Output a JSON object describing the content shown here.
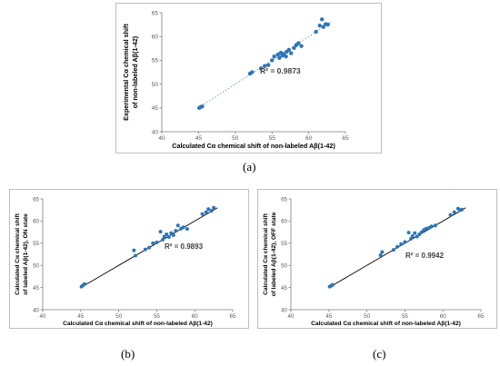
{
  "captions": {
    "a": "(a)",
    "b": "(b)",
    "c": "(c)"
  },
  "colors": {
    "points": "#2e75b6",
    "trend_a": "#5b9bd5",
    "trend_bc": "#000000",
    "axis": "#7f7f7f",
    "tick_text": "#595959"
  },
  "chart_data": [
    {
      "id": "a",
      "type": "scatter",
      "xlabel": "Calculated Cα chemical shift of non-labeled Aβ(1-42)",
      "ylabel_lines": [
        "Experimental Cα chemical shift",
        "of non-labeled Aβ(1-42)"
      ],
      "annotation": "R² = 0.9873",
      "xlim": [
        40,
        65
      ],
      "ylim": [
        40,
        65
      ],
      "xticks": [
        40,
        45,
        50,
        55,
        60,
        65
      ],
      "yticks": [
        40,
        45,
        50,
        55,
        60,
        65
      ],
      "trendline": {
        "style": "dotted",
        "from": [
          45,
          45.0
        ],
        "to": [
          63,
          63.0
        ]
      },
      "x": [
        45.1,
        45.3,
        45.5,
        52.0,
        52.3,
        53.5,
        54.0,
        54.5,
        55.0,
        55.3,
        55.8,
        56.0,
        56.2,
        56.4,
        56.6,
        56.9,
        57.0,
        57.3,
        57.6,
        58.0,
        58.3,
        58.6,
        59.0,
        61.0,
        61.5,
        61.8,
        62.0,
        62.3,
        62.6
      ],
      "y": [
        45.0,
        45.2,
        45.3,
        52.2,
        52.5,
        53.3,
        53.8,
        54.0,
        55.0,
        55.8,
        56.2,
        55.5,
        56.6,
        56.0,
        56.3,
        55.8,
        56.8,
        57.2,
        56.5,
        57.6,
        58.2,
        58.6,
        58.0,
        61.0,
        62.3,
        63.6,
        62.0,
        62.6,
        62.5
      ]
    },
    {
      "id": "b",
      "type": "scatter",
      "xlabel": "Calculated Cα chemical shift  of non-labeled Aβ(1-42)",
      "ylabel_lines": [
        "Calculated Cα chemical shift",
        "of labeled Aβ(1-42), ON state"
      ],
      "annotation": "R² = 0.9893",
      "xlim": [
        40,
        65
      ],
      "ylim": [
        40,
        65
      ],
      "xticks": [
        40,
        45,
        50,
        55,
        60,
        65
      ],
      "yticks": [
        40,
        45,
        50,
        55,
        60,
        65
      ],
      "trendline": {
        "style": "solid",
        "from": [
          45,
          45.0
        ],
        "to": [
          63,
          63.0
        ]
      },
      "x": [
        45.1,
        45.3,
        45.5,
        52.0,
        52.2,
        53.5,
        54.0,
        54.5,
        55.0,
        55.5,
        55.8,
        56.0,
        56.3,
        56.6,
        56.9,
        57.2,
        57.5,
        57.8,
        58.2,
        58.5,
        59.0,
        61.0,
        61.5,
        61.8,
        62.2,
        62.5
      ],
      "y": [
        45.2,
        45.5,
        45.8,
        53.4,
        52.2,
        53.6,
        54.0,
        55.0,
        55.2,
        57.6,
        55.8,
        56.5,
        57.0,
        56.4,
        57.3,
        56.8,
        57.8,
        59.0,
        58.3,
        58.6,
        58.2,
        61.6,
        62.0,
        62.7,
        62.3,
        63.0
      ]
    },
    {
      "id": "c",
      "type": "scatter",
      "xlabel": "Calculated Cα chemical shift of non-labeled Aβ(1-42)",
      "ylabel_lines": [
        "Calculated Cα chemical shift",
        "of labeled Aβ(1-42), OFF state"
      ],
      "annotation": "R² = 0.9942",
      "xlim": [
        40,
        65
      ],
      "ylim": [
        40,
        65
      ],
      "xticks": [
        40,
        45,
        50,
        55,
        60,
        65
      ],
      "yticks": [
        40,
        45,
        50,
        55,
        60,
        65
      ],
      "trendline": {
        "style": "solid",
        "from": [
          45,
          45.0
        ],
        "to": [
          63,
          63.0
        ]
      },
      "x": [
        45.1,
        45.3,
        45.5,
        51.8,
        52.0,
        53.5,
        54.0,
        54.5,
        55.0,
        55.5,
        55.8,
        56.0,
        56.3,
        56.6,
        56.9,
        57.2,
        57.5,
        57.8,
        58.2,
        58.5,
        59.0,
        61.0,
        61.5,
        62.0,
        62.3,
        62.5
      ],
      "y": [
        45.2,
        45.4,
        45.6,
        52.3,
        53.0,
        53.5,
        54.2,
        54.8,
        55.3,
        57.4,
        56.0,
        56.6,
        57.3,
        56.5,
        57.0,
        57.5,
        58.0,
        58.3,
        58.5,
        58.8,
        59.0,
        61.4,
        62.0,
        62.8,
        62.5,
        62.6
      ]
    }
  ]
}
